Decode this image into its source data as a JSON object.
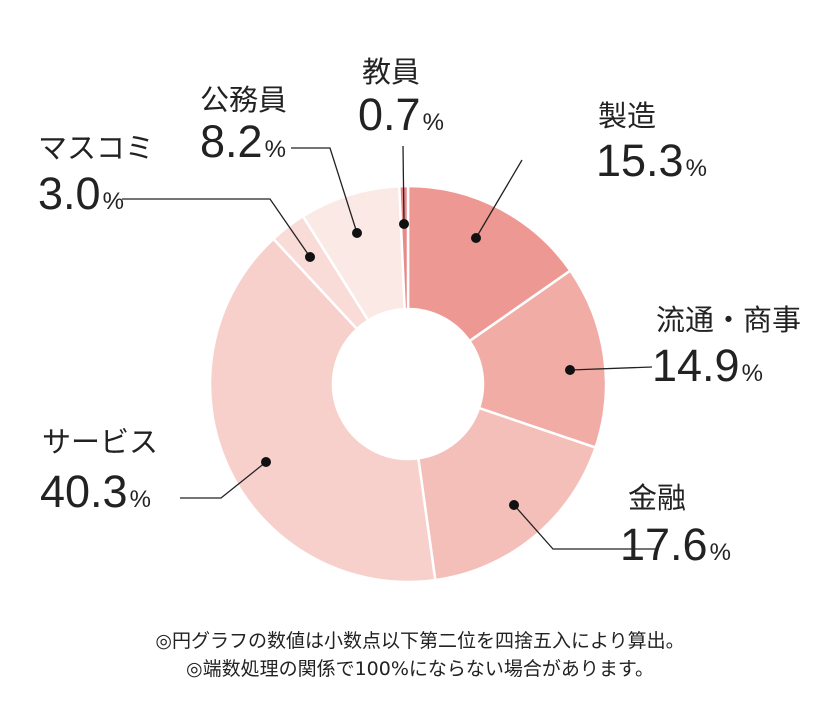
{
  "chart_data": {
    "type": "pie",
    "style": "donut",
    "title": "",
    "slices": [
      {
        "label": "製造",
        "value": 15.3,
        "display": "15.3",
        "color": "#ee9893"
      },
      {
        "label": "流通・商事",
        "value": 14.9,
        "display": "14.9",
        "color": "#f2aca6"
      },
      {
        "label": "金融",
        "value": 17.6,
        "display": "17.6",
        "color": "#f4bfb9"
      },
      {
        "label": "サービス",
        "value": 40.3,
        "display": "40.3",
        "color": "#f7d0cc"
      },
      {
        "label": "マスコミ",
        "value": 3.0,
        "display": "3.0",
        "color": "#f9dcd8"
      },
      {
        "label": "公務員",
        "value": 8.2,
        "display": "8.2",
        "color": "#fbe9e6"
      },
      {
        "label": "教員",
        "value": 0.7,
        "display": "0.7",
        "color": "#e8898a"
      }
    ],
    "unit": "%",
    "start": "top, clockwise"
  },
  "notes": [
    "◎円グラフの数値は小数点以下第二位を四捨五入により算出。",
    "◎端数処理の関係で100%にならない場合があります。"
  ]
}
